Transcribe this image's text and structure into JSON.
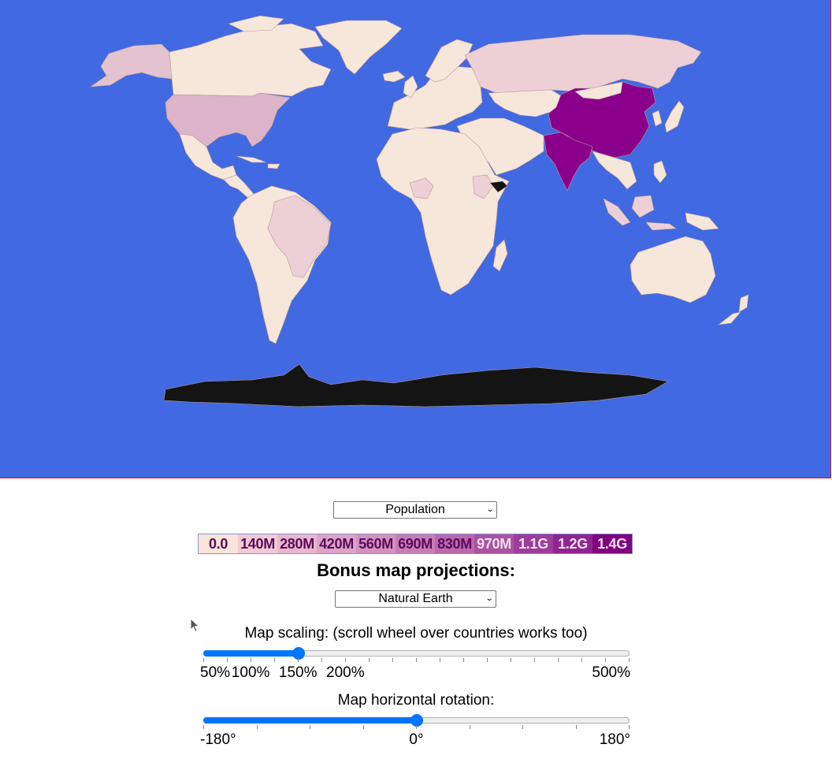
{
  "map": {
    "ocean_color": "#4169e1",
    "border_color": "#c8203a",
    "land_default_color": "#f7e6da",
    "highlight_colors": {
      "china_india": "#8b008b",
      "usa_indonesia": "#dcb3c9",
      "brazil_russia_others": "#ecd0d6",
      "antarctica_somalia": "#141414"
    }
  },
  "metric_select": {
    "value": "Population"
  },
  "legend": {
    "bins": [
      {
        "label": "0.0",
        "color": "#f8e4d9"
      },
      {
        "label": "140M",
        "color": "#efccd4"
      },
      {
        "label": "280M",
        "color": "#e6b8cd"
      },
      {
        "label": "420M",
        "color": "#dda4c5"
      },
      {
        "label": "560M",
        "color": "#d291bf"
      },
      {
        "label": "690M",
        "color": "#c67db6"
      },
      {
        "label": "830M",
        "color": "#b968ad"
      },
      {
        "label": "970M",
        "color": "#ab52a3"
      },
      {
        "label": "1.1G",
        "color": "#9d3c99"
      },
      {
        "label": "1.2G",
        "color": "#8f248f"
      },
      {
        "label": "1.4G",
        "color": "#800080"
      }
    ]
  },
  "projection": {
    "heading": "Bonus map projections:",
    "select_value": "Natural Earth"
  },
  "scaling": {
    "label": "Map scaling: (scroll wheel over countries works too)",
    "value_percent": 150,
    "tick_labels": [
      "50%",
      "100%",
      "150%",
      "200%",
      "500%"
    ]
  },
  "rotation": {
    "label": "Map horizontal rotation:",
    "value_degrees": 0,
    "tick_labels": [
      "-180°",
      "0°",
      "180°"
    ]
  }
}
